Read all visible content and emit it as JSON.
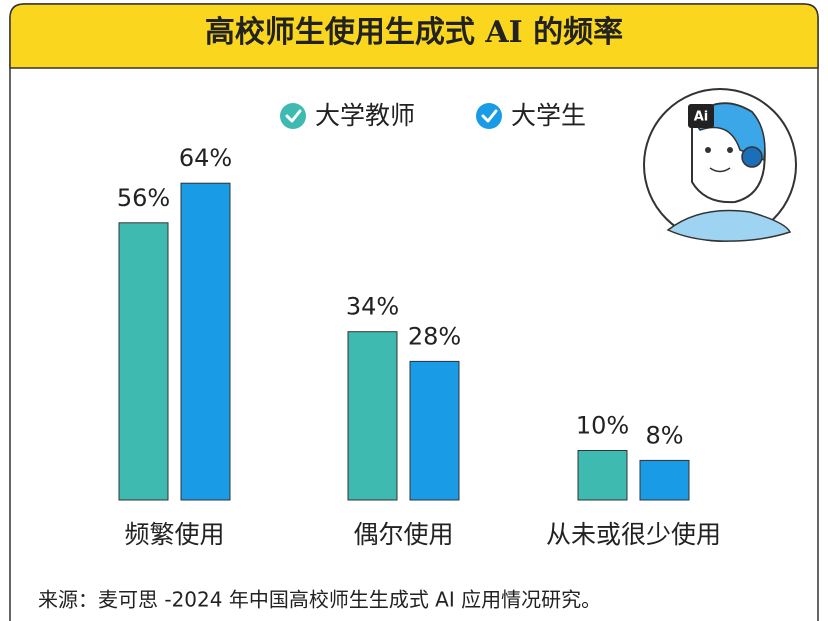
{
  "chart_data": {
    "type": "bar",
    "title": "高校师生使用生成式 AI 的频率",
    "categories": [
      "频繁使用",
      "偶尔使用",
      "从未或很少使用"
    ],
    "series": [
      {
        "name": "大学教师",
        "color": "#3fbab1",
        "values": [
          56,
          34,
          10
        ],
        "value_labels": [
          "56%",
          "34%",
          "10%"
        ]
      },
      {
        "name": "大学生",
        "color": "#1a9be6",
        "values": [
          64,
          28,
          8
        ],
        "value_labels": [
          "64%",
          "28%",
          "8%"
        ]
      }
    ],
    "legend": "top",
    "source": "来源：麦可思 -2024 年中国高校师生生成式 AI 应用情况研究。"
  },
  "illustration": {
    "badge": "Ai"
  }
}
